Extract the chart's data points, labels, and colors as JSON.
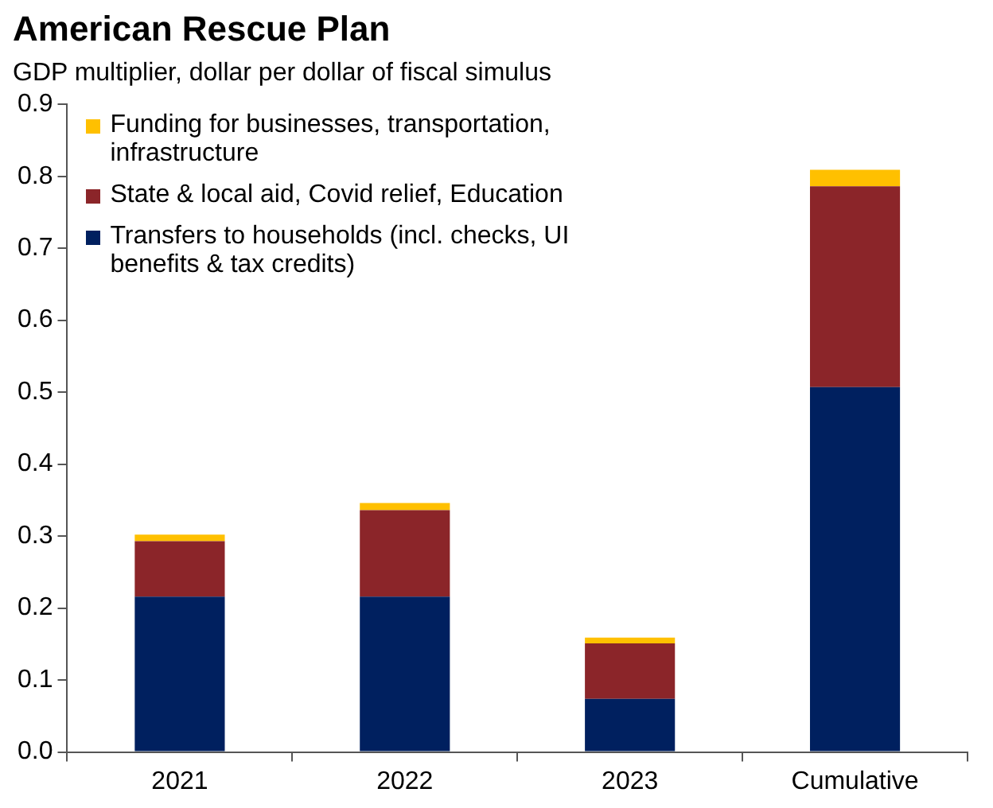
{
  "chart_data": {
    "type": "bar",
    "title": "American Rescue Plan",
    "subtitle": "GDP multiplier, dollar per dollar of fiscal simulus",
    "categories": [
      "2021",
      "2022",
      "2023",
      "Cumulative"
    ],
    "stacked": true,
    "legend": "top left",
    "series": [
      {
        "name": "Transfers to households (incl. checks, UI benefits & tax credits)",
        "color": "#00205f",
        "values": [
          0.216,
          0.216,
          0.074,
          0.507
        ]
      },
      {
        "name": "State & local aid, Covid relief, Education",
        "color": "#8b2529",
        "values": [
          0.077,
          0.12,
          0.077,
          0.279
        ]
      },
      {
        "name": "Funding for businesses, transportation, infrastructure",
        "color": "#ffc000",
        "values": [
          0.009,
          0.01,
          0.008,
          0.023
        ]
      }
    ],
    "ylim": [
      0,
      0.9
    ],
    "yticks": [
      {
        "value": 0,
        "label": "0.0"
      },
      0.1,
      0.2,
      0.3,
      0.4,
      0.5,
      0.6,
      0.7,
      0.8,
      0.9
    ]
  }
}
